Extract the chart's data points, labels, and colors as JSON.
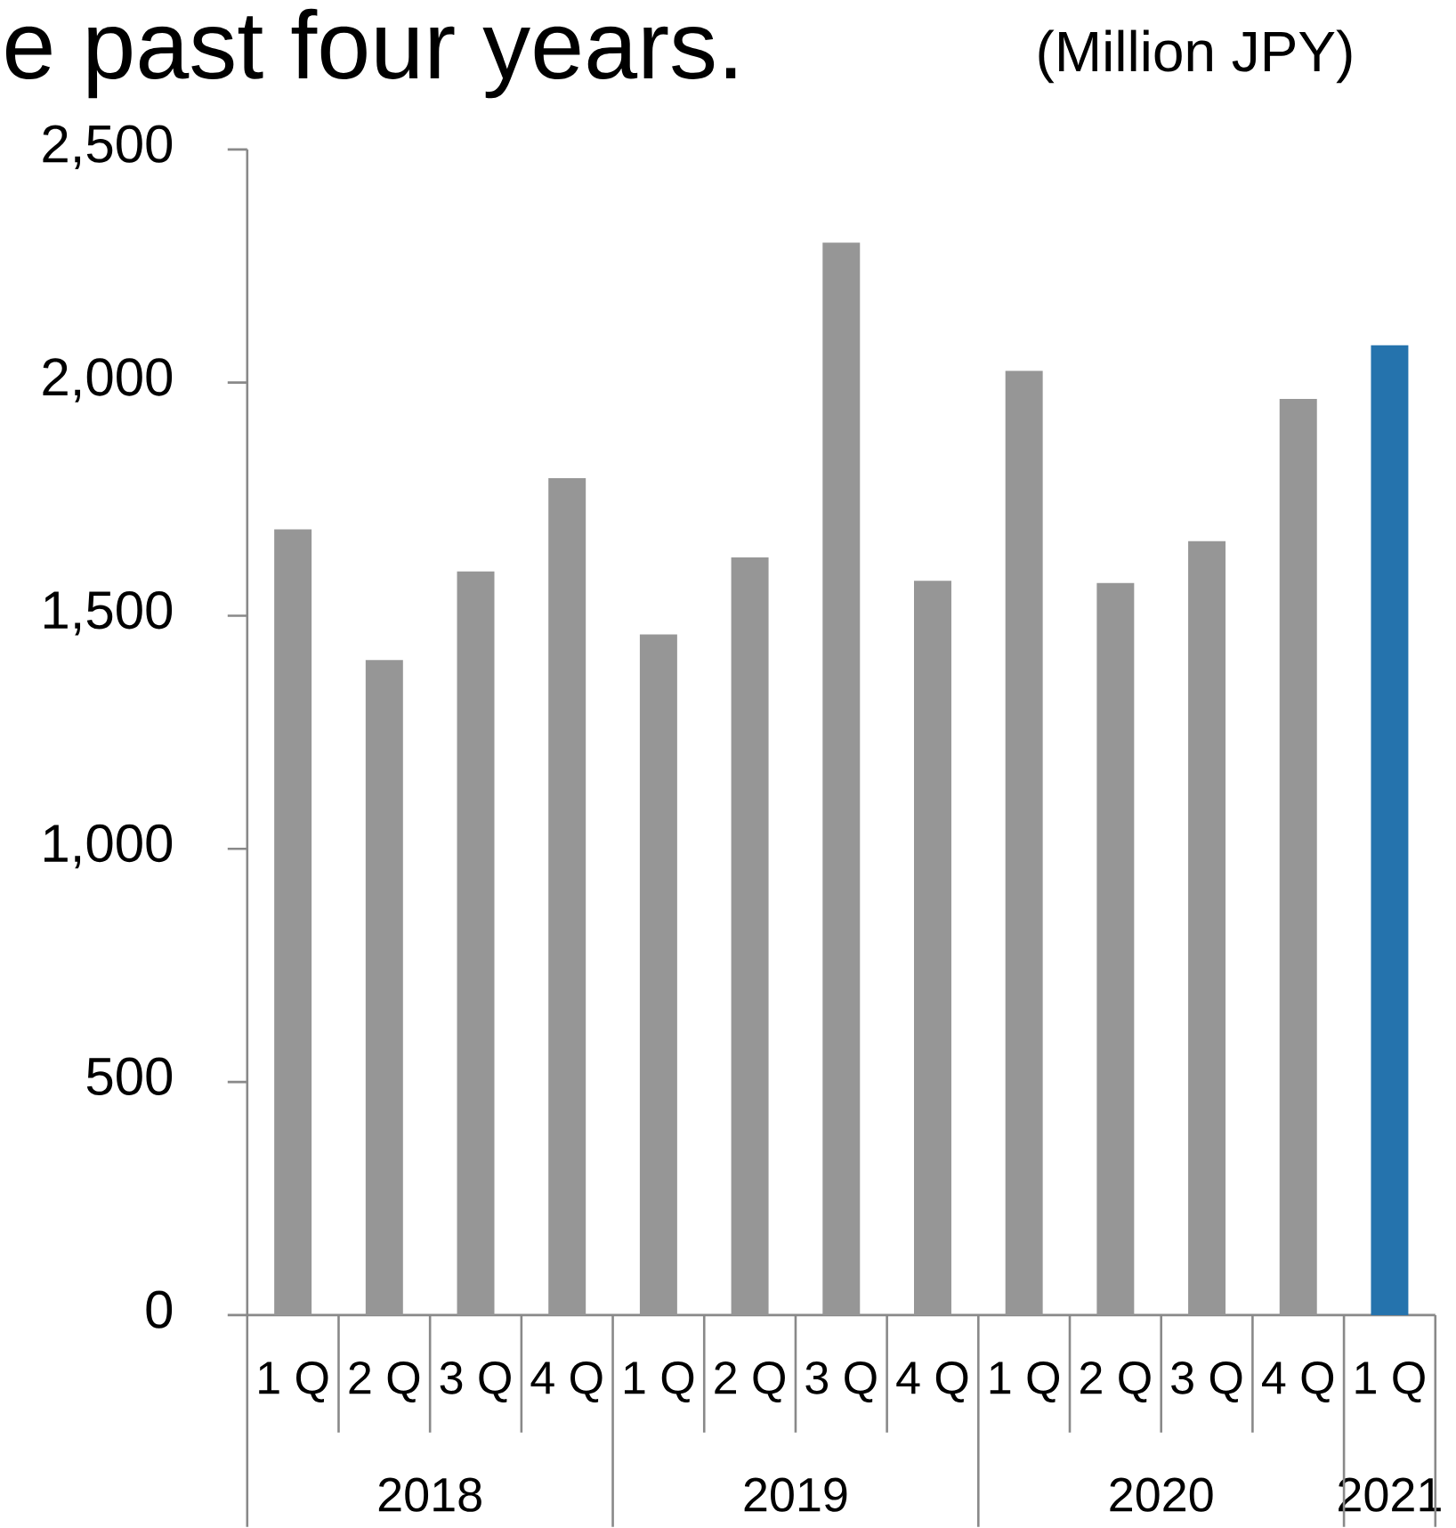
{
  "chart_data": {
    "type": "bar",
    "title": "e past four years.",
    "ylabel": "(Million JPY)",
    "categories": [
      "1 Q",
      "2 Q",
      "3 Q",
      "4 Q",
      "1 Q",
      "2 Q",
      "3 Q",
      "4 Q",
      "1 Q",
      "2 Q",
      "3 Q",
      "4 Q",
      "1 Q"
    ],
    "values": [
      1685,
      1405,
      1595,
      1795,
      1460,
      1625,
      2300,
      1575,
      2025,
      1570,
      1660,
      1965,
      2080
    ],
    "colors": [
      "#969696",
      "#969696",
      "#969696",
      "#969696",
      "#969696",
      "#969696",
      "#969696",
      "#969696",
      "#969696",
      "#969696",
      "#969696",
      "#969696",
      "#2573ad"
    ],
    "ylim": [
      0,
      2500
    ],
    "yticks": [
      0,
      500,
      {
        "value": 1000,
        "label": "1,000"
      },
      {
        "value": 1500,
        "label": "1,500"
      },
      {
        "value": 2000,
        "label": "2,000"
      },
      {
        "value": 2500,
        "label": "2,500"
      }
    ],
    "annotations": [
      "2018",
      "2019",
      "2020",
      "2021"
    ]
  }
}
